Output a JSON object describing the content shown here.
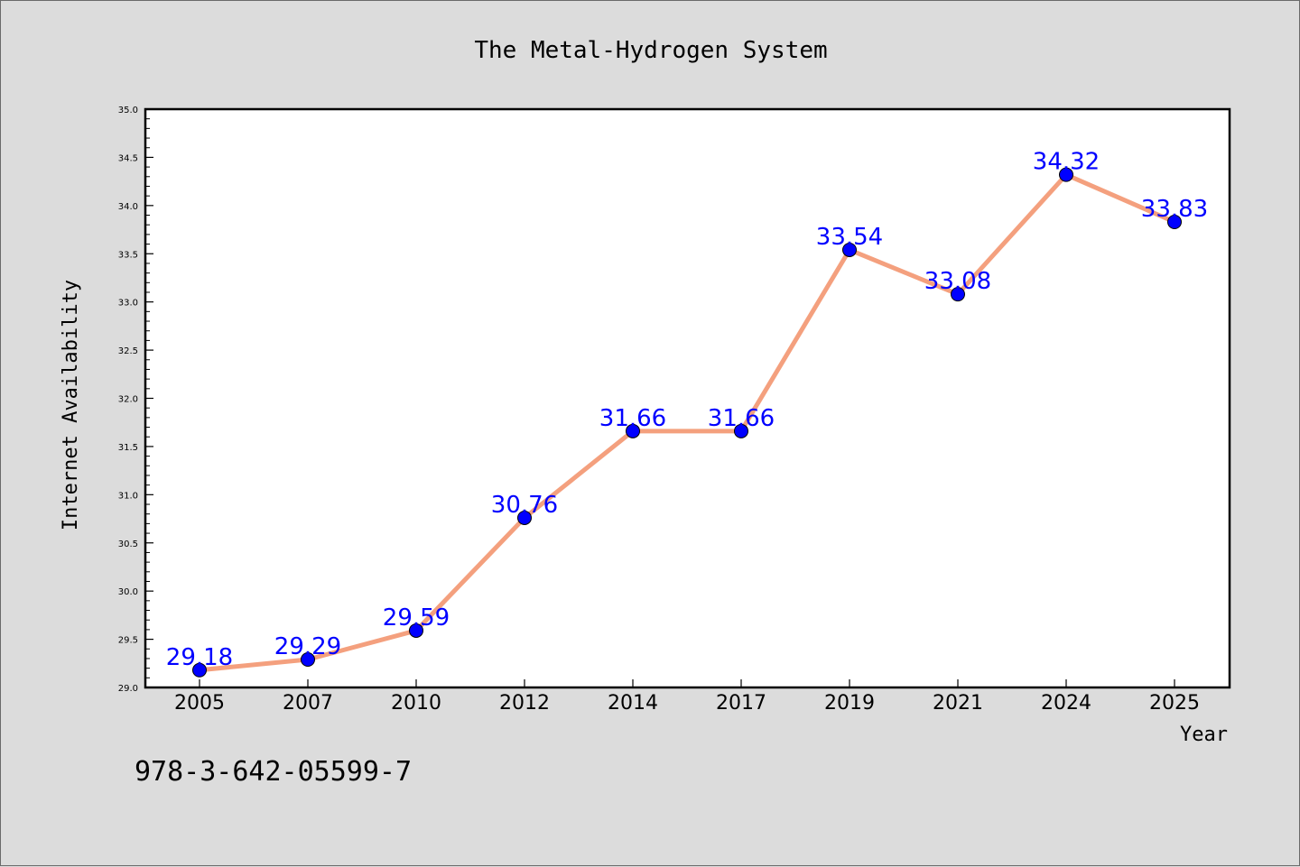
{
  "chart_data": {
    "type": "line",
    "title": "The Metal-Hydrogen System",
    "xlabel": "Year",
    "ylabel": "Internet Availability",
    "categories": [
      "2005",
      "2007",
      "2010",
      "2012",
      "2014",
      "2017",
      "2019",
      "2021",
      "2024",
      "2025"
    ],
    "series": [
      {
        "values": [
          29.18,
          29.29,
          29.59,
          30.76,
          31.66,
          31.66,
          33.54,
          33.08,
          34.32,
          33.83
        ],
        "labels": [
          "29.18",
          "29.29",
          "29.59",
          "30.76",
          "31.66",
          "31.66",
          "33.54",
          "33.08",
          "34.32",
          "33.83"
        ],
        "line_color": "#f4a07e",
        "marker_color": "#0000ff",
        "label_color": "#0000ff"
      }
    ],
    "ylim": [
      29.0,
      35.0
    ],
    "yticks": [
      "29.0",
      "29.5",
      "30.0",
      "30.5",
      "31.0",
      "31.5",
      "32.0",
      "32.5",
      "33.0",
      "33.5",
      "34.0",
      "34.5",
      "35.0"
    ],
    "grid": false
  },
  "footer": {
    "isbn": "978-3-642-05599-7"
  },
  "colors": {
    "background": "#dcdcdc",
    "plot_background": "#ffffff"
  }
}
